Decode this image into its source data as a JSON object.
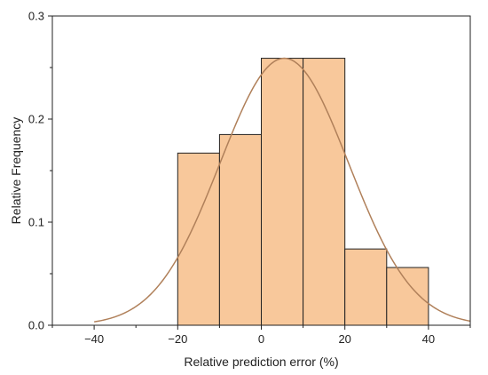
{
  "chart_data": {
    "type": "bar",
    "subtype": "histogram-with-normal-fit",
    "xlabel": "Relative prediction error (%)",
    "ylabel": "Relative Frequency",
    "xlim": [
      -50,
      50
    ],
    "ylim": [
      0,
      0.3
    ],
    "x_ticks": [
      -40,
      -20,
      0,
      20,
      40
    ],
    "x_tick_labels": [
      "−40",
      "−20",
      "0",
      "20",
      "40"
    ],
    "y_ticks": [
      0,
      0.1,
      0.2,
      0.3
    ],
    "y_tick_labels": [
      "0.0",
      "0.1",
      "0.2",
      "0.3"
    ],
    "bins": [
      {
        "start": -20,
        "end": -10,
        "value": 0.167
      },
      {
        "start": -10,
        "end": 0,
        "value": 0.185
      },
      {
        "start": 0,
        "end": 10,
        "value": 0.259
      },
      {
        "start": 10,
        "end": 20,
        "value": 0.259
      },
      {
        "start": 20,
        "end": 30,
        "value": 0.074
      },
      {
        "start": 30,
        "end": 40,
        "value": 0.056
      }
    ],
    "fit_curve": {
      "distribution": "normal",
      "mean": 5.5,
      "std": 15.4,
      "peak": 0.259,
      "x_range": [
        -40,
        50
      ]
    },
    "bar_color": "#f8c89b",
    "bar_edge_color": "#222222",
    "curve_color": "#b0805a"
  }
}
